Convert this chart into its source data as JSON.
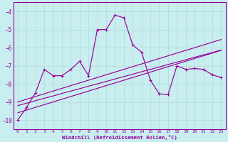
{
  "xlabel": "Windchill (Refroidissement éolien,°C)",
  "bg_color": "#c8eef0",
  "line_color": "#990099",
  "grid_color": "#b8dfe0",
  "xlim": [
    -0.5,
    23.5
  ],
  "ylim": [
    -10.5,
    -3.5
  ],
  "yticks": [
    -10,
    -9,
    -8,
    -7,
    -6,
    -5,
    -4
  ],
  "xticks": [
    0,
    1,
    2,
    3,
    4,
    5,
    6,
    7,
    8,
    9,
    10,
    11,
    12,
    13,
    14,
    15,
    16,
    17,
    18,
    19,
    20,
    21,
    22,
    23
  ],
  "main_line_x": [
    0,
    1,
    2,
    3,
    4,
    5,
    6,
    7,
    8,
    9,
    10,
    11,
    12,
    13,
    14,
    15,
    16,
    17,
    18,
    19,
    20,
    21,
    22,
    23
  ],
  "main_line_y": [
    -10.0,
    -9.3,
    -8.5,
    -7.2,
    -7.55,
    -7.55,
    -7.2,
    -6.75,
    -7.55,
    -5.0,
    -5.0,
    -4.2,
    -4.35,
    -5.85,
    -6.25,
    -7.8,
    -8.55,
    -8.6,
    -7.0,
    -7.2,
    -7.15,
    -7.2,
    -7.5,
    -7.65
  ],
  "line2_x": [
    0,
    1,
    2,
    3,
    4,
    5,
    6,
    7,
    8,
    9,
    10,
    11,
    12,
    13,
    14,
    15,
    16,
    17,
    18,
    19,
    20,
    21,
    22,
    23
  ],
  "line2_y": [
    -9.0,
    -8.85,
    -8.7,
    -8.55,
    -8.4,
    -8.25,
    -8.1,
    -7.95,
    -7.8,
    -7.65,
    -7.5,
    -7.35,
    -7.2,
    -7.05,
    -6.9,
    -6.75,
    -6.6,
    -6.45,
    -6.3,
    -6.15,
    -6.0,
    -5.85,
    -5.7,
    -5.55
  ],
  "line3_x": [
    0,
    1,
    2,
    3,
    4,
    5,
    6,
    7,
    8,
    9,
    10,
    11,
    12,
    13,
    14,
    15,
    16,
    17,
    18,
    19,
    20,
    21,
    22,
    23
  ],
  "line3_y": [
    -9.2,
    -9.07,
    -8.93,
    -8.8,
    -8.67,
    -8.53,
    -8.4,
    -8.27,
    -8.13,
    -8.0,
    -7.87,
    -7.73,
    -7.6,
    -7.47,
    -7.33,
    -7.2,
    -7.07,
    -6.93,
    -6.8,
    -6.67,
    -6.53,
    -6.4,
    -6.27,
    -6.13
  ],
  "line4_x": [
    0,
    1,
    2,
    3,
    4,
    5,
    6,
    7,
    8,
    9,
    10,
    11,
    12,
    13,
    14,
    15,
    16,
    17,
    18,
    19,
    20,
    21,
    22,
    23
  ],
  "line4_y": [
    -9.6,
    -9.45,
    -9.3,
    -9.15,
    -9.0,
    -8.85,
    -8.7,
    -8.55,
    -8.4,
    -8.25,
    -8.1,
    -7.95,
    -7.8,
    -7.65,
    -7.5,
    -7.35,
    -7.2,
    -7.05,
    -6.9,
    -6.75,
    -6.6,
    -6.45,
    -6.3,
    -6.15
  ]
}
